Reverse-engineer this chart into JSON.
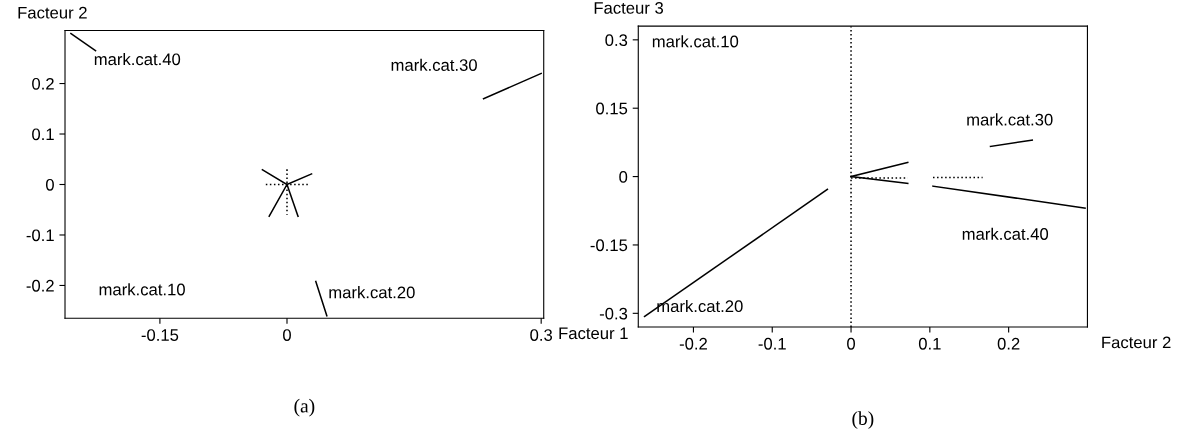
{
  "chart_data": [
    {
      "type": "line",
      "xlabel": "Facteur 1",
      "ylabel": "Facteur 2",
      "xlim": [
        -0.262,
        0.303
      ],
      "ylim": [
        -0.265,
        0.305
      ],
      "xticks": [
        -0.15,
        0,
        0.3
      ],
      "yticks": [
        -0.2,
        -0.1,
        0,
        0.1,
        0.2
      ],
      "grid": false,
      "legend": false,
      "marker": "none",
      "series": [
        {
          "color": "#000000",
          "x": [
            -0.226,
            -0.255
          ],
          "values": [
            0.265,
            0.299
          ]
        },
        {
          "color": "#000000",
          "x": [
            0.232,
            0.3
          ],
          "values": [
            0.17,
            0.22
          ]
        },
        {
          "color": "#000000",
          "x": [
            0.034,
            0.047
          ],
          "values": [
            -0.192,
            -0.26
          ]
        },
        {
          "color": "#000000",
          "x": [
            0,
            -0.029
          ],
          "values": [
            0,
            0.029
          ]
        },
        {
          "color": "#000000",
          "x": [
            0,
            0.029
          ],
          "values": [
            0,
            0.021
          ]
        },
        {
          "color": "#000000",
          "x": [
            0,
            -0.021
          ],
          "values": [
            0,
            -0.063
          ]
        },
        {
          "color": "#000000",
          "x": [
            0,
            0.013
          ],
          "values": [
            0,
            -0.063
          ]
        },
        {
          "color": "#000000",
          "line_style": "dotted",
          "x": [
            -0.025,
            0.025
          ],
          "values": [
            0,
            0
          ]
        },
        {
          "color": "#000000",
          "line_style": "dotted",
          "x": [
            0,
            0
          ],
          "values": [
            0.03,
            -0.06
          ]
        }
      ],
      "annotations": [
        "mark.cat.40",
        "mark.cat.30",
        "mark.cat.10",
        "mark.cat.20",
        "(a)"
      ]
    },
    {
      "type": "line",
      "xlabel": "Facteur 2",
      "ylabel": "Facteur 3",
      "xlim": [
        -0.27,
        0.3
      ],
      "ylim": [
        -0.33,
        0.33
      ],
      "xticks": [
        -0.2,
        -0.1,
        0,
        0.1,
        0.2
      ],
      "yticks": [
        -0.3,
        -0.15,
        0,
        0.15,
        0.3
      ],
      "grid": false,
      "legend": false,
      "marker": "none",
      "ref_lines": [
        {
          "axis": "x",
          "value": 0,
          "color": "#000000",
          "line_style": "dotted"
        }
      ],
      "series": [
        {
          "color": "#000000",
          "x": [
            -0.03,
            -0.262
          ],
          "values": [
            -0.028,
            -0.307
          ]
        },
        {
          "color": "#000000",
          "x": [
            0.177,
            0.23
          ],
          "values": [
            0.066,
            0.08
          ]
        },
        {
          "color": "#000000",
          "x": [
            0.104,
            0.297
          ],
          "values": [
            -0.021,
            -0.069
          ]
        },
        {
          "color": "#000000",
          "x": [
            0,
            0.072
          ],
          "values": [
            0,
            0.031
          ]
        },
        {
          "color": "#000000",
          "x": [
            0,
            0.072
          ],
          "values": [
            0,
            -0.015
          ]
        },
        {
          "color": "#000000",
          "line_style": "dotted",
          "x": [
            0,
            0.072
          ],
          "values": [
            -0.003,
            -0.003
          ]
        },
        {
          "color": "#000000",
          "line_style": "dotted",
          "x": [
            0.104,
            0.167
          ],
          "values": [
            -0.002,
            -0.002
          ]
        }
      ],
      "annotations": [
        "mark.cat.10",
        "mark.cat.20",
        "mark.cat.30",
        "mark.cat.40",
        "(b)"
      ]
    }
  ]
}
